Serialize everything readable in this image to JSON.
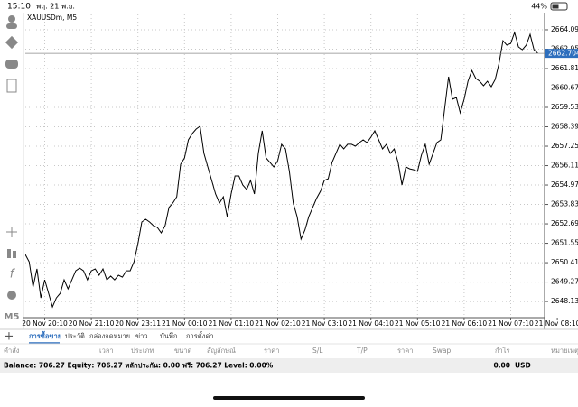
{
  "status_bar": {
    "time": "15:10",
    "date": "พฤ. 21 พ.ย.",
    "battery": "44%"
  },
  "timeframe": "M5",
  "chart_data": {
    "type": "line",
    "title": "XAUUSDm, M5",
    "color": "#000000",
    "grid": true,
    "categories": [
      null,
      null,
      null,
      null,
      null,
      "20 Nov 20:10",
      null,
      null,
      null,
      null,
      null,
      null,
      null,
      null,
      null,
      null,
      null,
      "20 Nov 21:10",
      null,
      null,
      null,
      null,
      null,
      null,
      null,
      null,
      null,
      null,
      null,
      "20 Nov 23:11",
      null,
      null,
      null,
      null,
      null,
      null,
      null,
      null,
      null,
      null,
      null,
      "21 Nov 00:10",
      null,
      null,
      null,
      null,
      null,
      null,
      null,
      null,
      null,
      null,
      null,
      "21 Nov 01:10",
      null,
      null,
      null,
      null,
      null,
      null,
      null,
      null,
      null,
      null,
      null,
      "21 Nov 02:10",
      null,
      null,
      null,
      null,
      null,
      null,
      null,
      null,
      null,
      null,
      null,
      "21 Nov 03:10",
      null,
      null,
      null,
      null,
      null,
      null,
      null,
      null,
      null,
      null,
      null,
      "21 Nov 04:10",
      null,
      null,
      null,
      null,
      null,
      null,
      null,
      null,
      null,
      null,
      null,
      "21 Nov 05:10",
      null,
      null,
      null,
      null,
      null,
      null,
      null,
      null,
      null,
      null,
      null,
      "21 Nov 06:10",
      null,
      null,
      null,
      null,
      null,
      null,
      null,
      null,
      null,
      null,
      null,
      "21 Nov 07:10",
      null,
      null,
      null,
      null,
      null,
      null,
      null,
      null,
      null,
      null,
      null,
      "21 Nov 08:10"
    ],
    "values": [
      2650.89,
      2650.46,
      2648.98,
      2650.04,
      2648.34,
      2649.4,
      2648.61,
      2647.81,
      2648.34,
      2648.61,
      2649.4,
      2648.87,
      2649.4,
      2649.93,
      2650.09,
      2649.93,
      2649.4,
      2649.93,
      2650.04,
      2649.67,
      2650.04,
      2649.4,
      2649.62,
      2649.4,
      2649.67,
      2649.56,
      2649.93,
      2649.93,
      2650.46,
      2651.52,
      2652.8,
      2652.96,
      2652.8,
      2652.58,
      2652.48,
      2652.16,
      2652.58,
      2653.65,
      2653.91,
      2654.28,
      2656.19,
      2656.56,
      2657.62,
      2657.99,
      2658.26,
      2658.42,
      2656.83,
      2656.03,
      2655.24,
      2654.44,
      2653.91,
      2654.28,
      2653.11,
      2654.44,
      2655.5,
      2655.5,
      2654.97,
      2654.71,
      2655.24,
      2654.44,
      2656.83,
      2658.15,
      2656.56,
      2656.3,
      2656.03,
      2656.4,
      2657.36,
      2657.09,
      2655.77,
      2653.91,
      2653.11,
      2651.79,
      2652.32,
      2653.11,
      2653.65,
      2654.18,
      2654.6,
      2655.24,
      2655.34,
      2656.3,
      2656.83,
      2657.36,
      2657.09,
      2657.36,
      2657.36,
      2657.25,
      2657.46,
      2657.62,
      2657.46,
      2657.78,
      2658.15,
      2657.62,
      2657.09,
      2657.36,
      2656.83,
      2657.09,
      2656.3,
      2654.97,
      2656.03,
      2655.92,
      2655.87,
      2655.77,
      2656.72,
      2657.36,
      2656.19,
      2656.83,
      2657.46,
      2657.62,
      2659.48,
      2661.33,
      2660.01,
      2660.11,
      2659.21,
      2660.01,
      2661.07,
      2661.7,
      2661.23,
      2661.07,
      2660.8,
      2661.07,
      2660.75,
      2661.17,
      2662.13,
      2663.45,
      2663.19,
      2663.29,
      2663.93,
      2663.08,
      2662.92,
      2663.19,
      2663.82,
      2662.92,
      2662.704,
      null,
      null,
      null,
      null,
      null
    ],
    "ylim": [
      2647.18,
      2664.99
    ],
    "yticks": [
      {
        "value": 2648.13,
        "label": "2648.130"
      },
      {
        "value": 2649.27,
        "label": "2649.270"
      },
      {
        "value": 2650.41,
        "label": "2650.410"
      },
      {
        "value": 2651.55,
        "label": "2651.550"
      },
      {
        "value": 2652.69,
        "label": "2652.690"
      },
      {
        "value": 2653.83,
        "label": "2653.830"
      },
      {
        "value": 2654.97,
        "label": "2654.970"
      },
      {
        "value": 2656.11,
        "label": "2656.110"
      },
      {
        "value": 2657.25,
        "label": "2657.250"
      },
      {
        "value": 2658.39,
        "label": "2658.390"
      },
      {
        "value": 2659.53,
        "label": "2659.530"
      },
      {
        "value": 2660.67,
        "label": "2660.670"
      },
      {
        "value": 2661.81,
        "label": "2661.810"
      },
      {
        "value": 2662.95,
        "label": "2662.950"
      },
      {
        "value": 2664.09,
        "label": "2664.090"
      }
    ],
    "bid": 2662.704,
    "bid_color": "#2d6ebd"
  },
  "tabs": [
    "การซื้อขาย",
    "ประวัติ",
    "กล่องจดหมาย",
    "ข่าว",
    "บันทึก",
    "การตั้งค่า"
  ],
  "table": {
    "columns": [
      "คำสั่ง",
      "เวลา",
      "ประเภท",
      "ขนาด",
      "สัญลักษณ์",
      "ราคา",
      "S/L",
      "T/P",
      "ราคา",
      "Swap",
      "กำไร",
      "หมายเหตุ"
    ]
  },
  "summary": {
    "text": "Balance: 706.27 Equity: 706.27 หลักประกัน: 0.00 ฟรี: 706.27 Level: 0.00%",
    "profit": "0.00",
    "currency": "USD"
  }
}
